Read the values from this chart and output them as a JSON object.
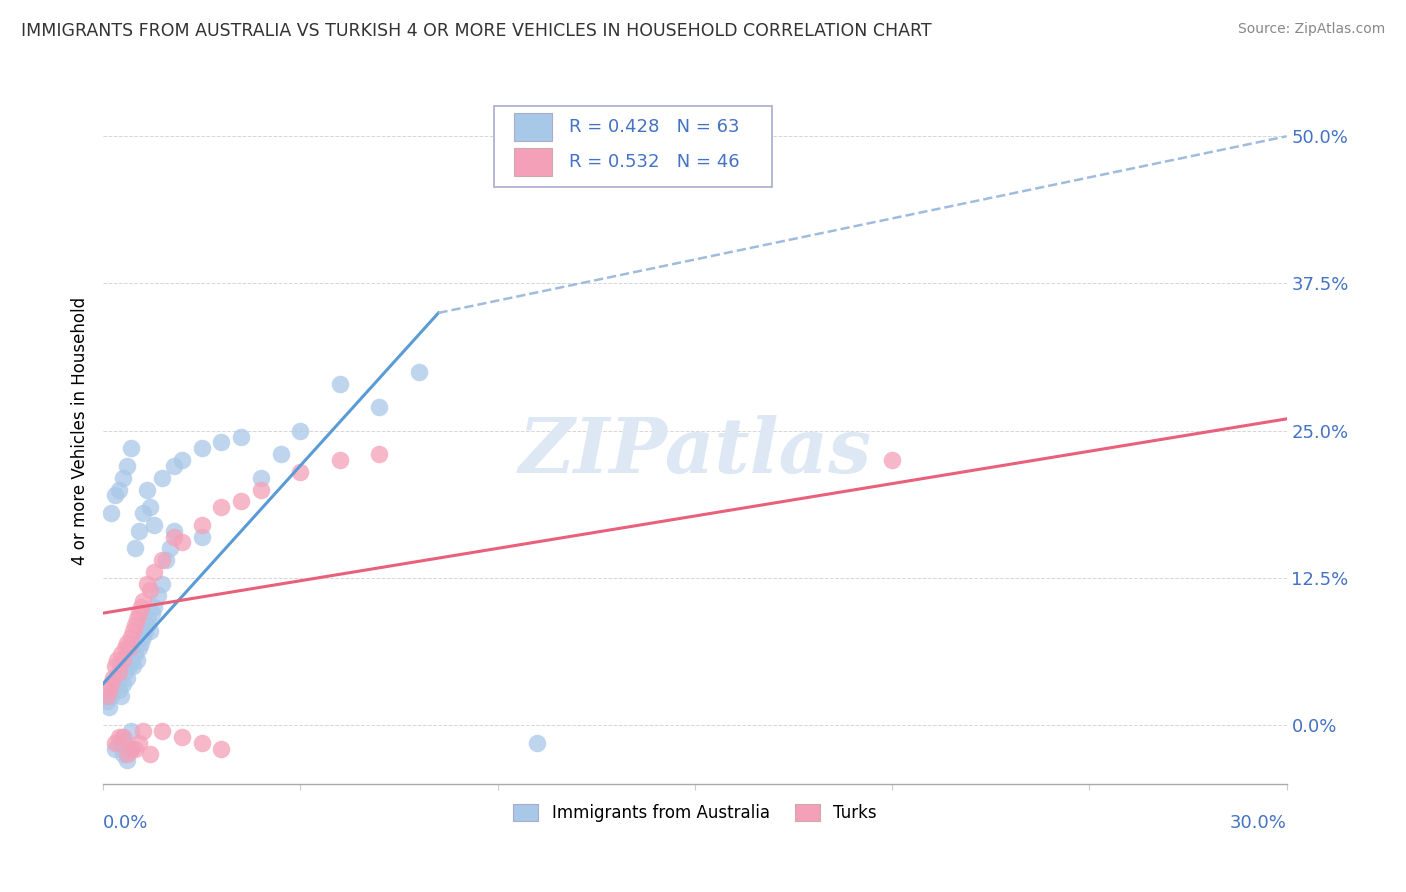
{
  "title": "IMMIGRANTS FROM AUSTRALIA VS TURKISH 4 OR MORE VEHICLES IN HOUSEHOLD CORRELATION CHART",
  "source": "Source: ZipAtlas.com",
  "ylabel": "4 or more Vehicles in Household",
  "ytick_labels": [
    "0.0%",
    "12.5%",
    "25.0%",
    "37.5%",
    "50.0%"
  ],
  "ytick_values": [
    0.0,
    12.5,
    25.0,
    37.5,
    50.0
  ],
  "xlim": [
    0.0,
    30.0
  ],
  "ylim": [
    -5.0,
    55.0
  ],
  "legend_r1": "R = 0.428",
  "legend_n1": "N = 63",
  "legend_r2": "R = 0.532",
  "legend_n2": "N = 46",
  "color_australia": "#a8c8e8",
  "color_turks": "#f4a0b8",
  "trendline_color_australia": "#5b9bd5",
  "trendline_color_australia_dashed": "#a0bcdc",
  "trendline_color_turks": "#e8607a",
  "watermark": "ZIPatlas",
  "watermark_color": "#dde8f4",
  "legend_text_color": "#4472c4",
  "scatter_australia_x": [
    0.1,
    0.15,
    0.2,
    0.25,
    0.3,
    0.35,
    0.4,
    0.45,
    0.5,
    0.55,
    0.6,
    0.65,
    0.7,
    0.75,
    0.8,
    0.85,
    0.9,
    0.95,
    1.0,
    1.05,
    1.1,
    1.15,
    1.2,
    1.25,
    1.3,
    1.4,
    1.5,
    1.6,
    1.7,
    1.8,
    0.2,
    0.3,
    0.4,
    0.5,
    0.6,
    0.7,
    0.8,
    0.9,
    1.0,
    1.1,
    1.2,
    1.3,
    1.5,
    1.8,
    2.0,
    2.5,
    3.0,
    3.5,
    4.0,
    5.0,
    6.0,
    7.0,
    8.0,
    2.5,
    4.5,
    0.3,
    0.4,
    0.5,
    0.6,
    0.7,
    11.0,
    0.5,
    0.7
  ],
  "scatter_australia_y": [
    2.0,
    1.5,
    2.5,
    3.0,
    3.5,
    4.0,
    3.0,
    2.5,
    3.5,
    4.5,
    4.0,
    5.0,
    5.5,
    5.0,
    6.0,
    5.5,
    6.5,
    7.0,
    7.5,
    8.0,
    8.5,
    9.0,
    8.0,
    9.5,
    10.0,
    11.0,
    12.0,
    14.0,
    15.0,
    16.5,
    18.0,
    19.5,
    20.0,
    21.0,
    22.0,
    23.5,
    15.0,
    16.5,
    18.0,
    20.0,
    18.5,
    17.0,
    21.0,
    22.0,
    22.5,
    23.5,
    24.0,
    24.5,
    21.0,
    25.0,
    29.0,
    27.0,
    30.0,
    16.0,
    23.0,
    -2.0,
    -1.5,
    -2.5,
    -3.0,
    -2.0,
    -1.5,
    -1.0,
    -0.5
  ],
  "scatter_turks_x": [
    0.1,
    0.15,
    0.2,
    0.25,
    0.3,
    0.35,
    0.4,
    0.45,
    0.5,
    0.55,
    0.6,
    0.65,
    0.7,
    0.75,
    0.8,
    0.85,
    0.9,
    0.95,
    1.0,
    1.1,
    1.2,
    1.3,
    1.5,
    1.8,
    2.0,
    2.5,
    3.0,
    3.5,
    4.0,
    5.0,
    6.0,
    7.0,
    20.0,
    0.3,
    0.5,
    0.7,
    0.9,
    1.2,
    1.5,
    2.0,
    2.5,
    3.0,
    0.4,
    0.6,
    0.8,
    1.0
  ],
  "scatter_turks_y": [
    2.5,
    3.0,
    3.5,
    4.0,
    5.0,
    5.5,
    4.5,
    6.0,
    5.5,
    6.5,
    7.0,
    6.5,
    7.5,
    8.0,
    8.5,
    9.0,
    9.5,
    10.0,
    10.5,
    12.0,
    11.5,
    13.0,
    14.0,
    16.0,
    15.5,
    17.0,
    18.5,
    19.0,
    20.0,
    21.5,
    22.5,
    23.0,
    22.5,
    -1.5,
    -1.0,
    -2.0,
    -1.5,
    -2.5,
    -0.5,
    -1.0,
    -1.5,
    -2.0,
    -1.0,
    -2.5,
    -2.0,
    -0.5
  ],
  "trendline_aus_x0": 0.0,
  "trendline_aus_y0": 3.5,
  "trendline_aus_x1": 8.5,
  "trendline_aus_y1": 35.0,
  "trendline_aus_dash_x0": 8.5,
  "trendline_aus_dash_y0": 35.0,
  "trendline_aus_dash_x1": 30.0,
  "trendline_aus_dash_y1": 50.0,
  "trendline_turk_x0": 0.0,
  "trendline_turk_y0": 9.5,
  "trendline_turk_x1": 30.0,
  "trendline_turk_y1": 26.0
}
